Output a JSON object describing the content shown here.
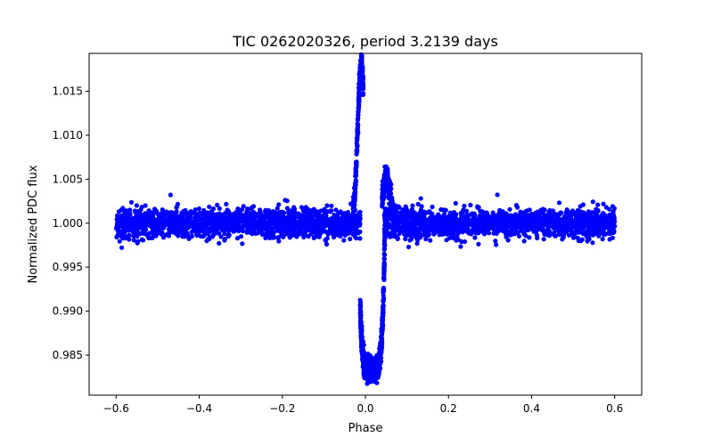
{
  "chart_data": {
    "type": "scatter",
    "title": "TIC 0262020326, period 3.2139 days",
    "xlabel": "Phase",
    "ylabel": "Normalized PDC flux",
    "xlim": [
      -0.665,
      0.665
    ],
    "ylim": [
      0.98045,
      1.0193
    ],
    "xticks": [
      -0.6,
      -0.4,
      -0.2,
      0.0,
      0.2,
      0.4,
      0.6
    ],
    "xtick_labels": [
      "−0.6",
      "−0.4",
      "−0.2",
      "0.0",
      "0.2",
      "0.4",
      "0.6"
    ],
    "yticks": [
      0.985,
      0.99,
      0.995,
      1.0,
      1.005,
      1.01,
      1.015
    ],
    "ytick_labels": [
      "0.985",
      "0.990",
      "0.995",
      "1.000",
      "1.005",
      "1.010",
      "1.015"
    ],
    "marker_color": "#0000ff",
    "series": [
      {
        "name": "phase-folded light curve",
        "phase_range": [
          -0.6,
          0.6
        ],
        "baseline_flux": 1.0,
        "baseline_scatter": 0.0008,
        "point_count": 3200,
        "features": [
          {
            "name": "pre-transit spike",
            "phase_start": -0.03,
            "phase_peak": -0.01,
            "phase_end": -0.005,
            "peak_flux": 1.0178
          },
          {
            "name": "transit dip",
            "phase_center": 0.015,
            "half_width": 0.035,
            "min_flux": 0.9822,
            "bottom_flux": 0.9838
          },
          {
            "name": "post-transit bump",
            "phase_start": 0.04,
            "phase_peak": 0.05,
            "phase_end": 0.075,
            "peak_flux": 1.0052
          }
        ]
      }
    ]
  }
}
